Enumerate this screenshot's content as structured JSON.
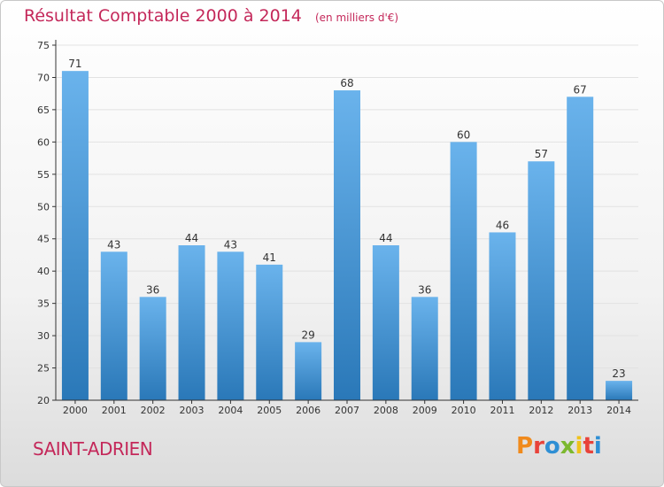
{
  "header": {
    "title": "Résultat Comptable 2000 à 2014",
    "subtitle": "(en milliers d'€)"
  },
  "footer": {
    "commune": "SAINT-ADRIEN",
    "logo_text": "Proxiti",
    "logo_colors": [
      "#f08a1c",
      "#e8433a",
      "#2f8fd4",
      "#7cb82f",
      "#f0c31c",
      "#e8433a",
      "#2f8fd4"
    ]
  },
  "colors": {
    "title": "#c4285a",
    "bar_top": "#6ab3ec",
    "bar_bottom": "#2a78b8",
    "grid": "#e2e2e2",
    "axis": "#333333"
  },
  "chart_data": {
    "type": "bar",
    "categories": [
      "2000",
      "2001",
      "2002",
      "2003",
      "2004",
      "2005",
      "2006",
      "2007",
      "2008",
      "2009",
      "2010",
      "2011",
      "2012",
      "2013",
      "2014"
    ],
    "values": [
      71,
      43,
      36,
      44,
      43,
      41,
      29,
      68,
      44,
      36,
      60,
      46,
      57,
      67,
      23
    ],
    "ylim": [
      20,
      75
    ],
    "yticks": [
      20,
      25,
      30,
      35,
      40,
      45,
      50,
      55,
      60,
      65,
      70,
      75
    ],
    "grid": true
  }
}
